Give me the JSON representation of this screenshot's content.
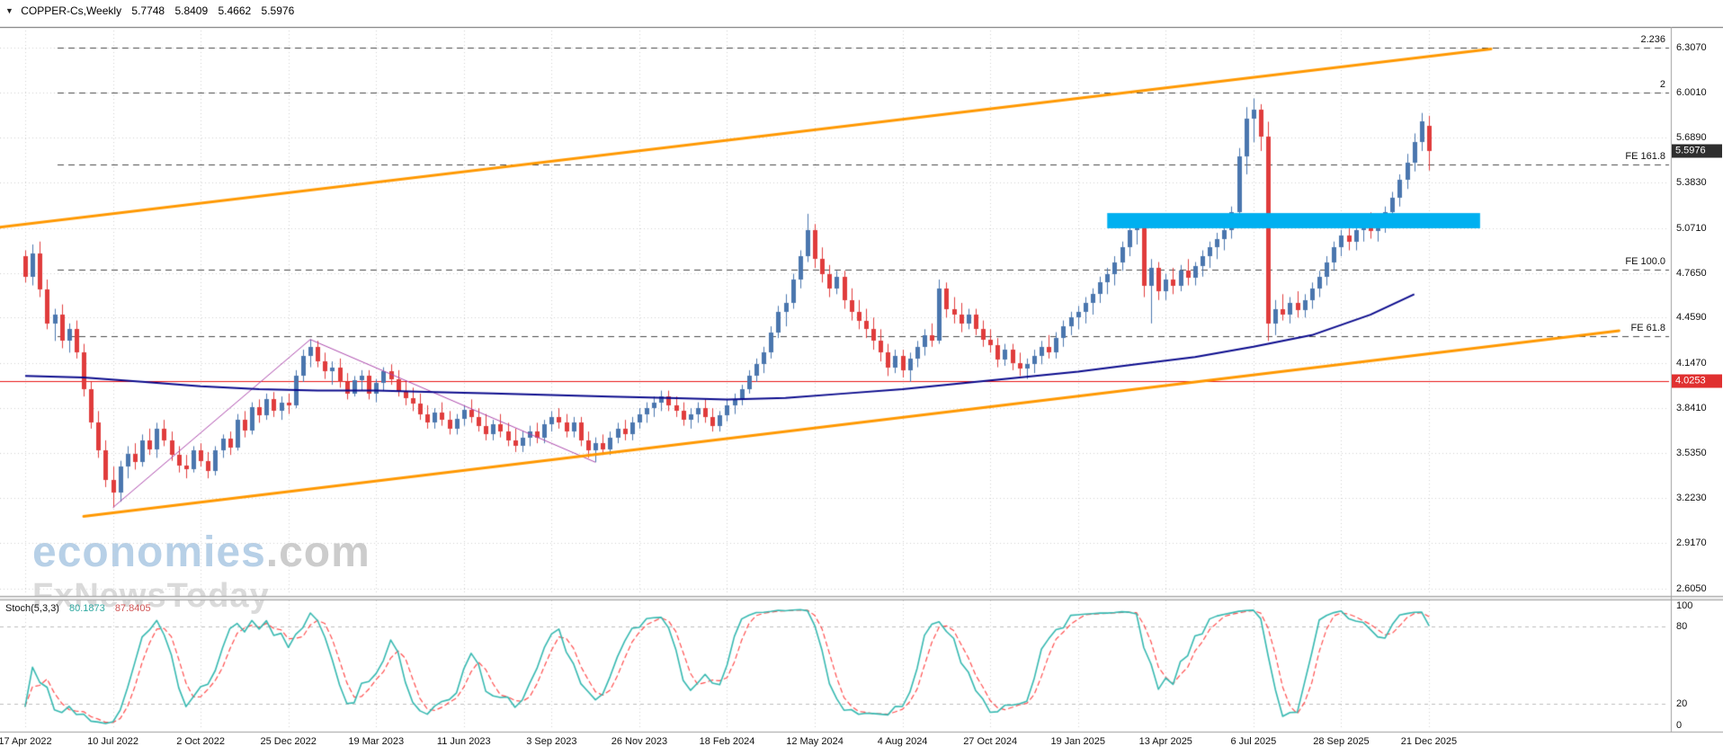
{
  "header": {
    "menu_icon": "▼",
    "symbol_title": "COPPER-Cs,Weekly",
    "open": "5.7748",
    "high": "5.8409",
    "low": "5.4662",
    "close": "5.5976"
  },
  "watermark": {
    "brand": "economies",
    "domain": ".com",
    "subtitle": "FxNewsToday"
  },
  "chart_data": {
    "type": "candlestick",
    "symbol": "COPPER-Cs",
    "timeframe": "Weekly",
    "x_axis": {
      "labels": [
        "17 Apr 2022",
        "10 Jul 2022",
        "2 Oct 2022",
        "25 Dec 2022",
        "19 Mar 2023",
        "11 Jun 2023",
        "3 Sep 2023",
        "26 Nov 2023",
        "18 Feb 2024",
        "12 May 2024",
        "4 Aug 2024",
        "27 Oct 2024",
        "19 Jan 2025",
        "13 Apr 2025",
        "6 Jul 2025",
        "28 Sep 2025",
        "21 Dec 2025"
      ],
      "label_week_step": 12
    },
    "y_axis": {
      "tick_labels": [
        "6.3070",
        "6.0010",
        "5.6890",
        "5.3830",
        "5.0710",
        "4.7650",
        "4.4590",
        "4.1470",
        "3.8410",
        "3.5350",
        "3.2230",
        "2.9170",
        "2.6050"
      ]
    },
    "current_price": {
      "value": "5.5976",
      "badge_color": "#2e2e2e",
      "text_color": "#ffffff"
    },
    "price_line": {
      "value": "4.0253",
      "color": "#e81515",
      "badge_color": "#e03030"
    },
    "candle_colors": {
      "up": "#4a76ae",
      "down": "#e03c3c"
    },
    "grid": {
      "color": "#d0d0d0"
    },
    "candles": [
      [
        4.88,
        4.92,
        4.7,
        4.74
      ],
      [
        4.74,
        4.96,
        4.68,
        4.9
      ],
      [
        4.9,
        4.98,
        4.6,
        4.65
      ],
      [
        4.65,
        4.72,
        4.38,
        4.42
      ],
      [
        4.42,
        4.52,
        4.3,
        4.48
      ],
      [
        4.48,
        4.55,
        4.25,
        4.3
      ],
      [
        4.3,
        4.42,
        4.22,
        4.38
      ],
      [
        4.38,
        4.44,
        4.18,
        4.22
      ],
      [
        4.22,
        4.28,
        3.92,
        3.97
      ],
      [
        3.97,
        4.02,
        3.7,
        3.74
      ],
      [
        3.74,
        3.82,
        3.5,
        3.55
      ],
      [
        3.55,
        3.62,
        3.3,
        3.35
      ],
      [
        3.35,
        3.44,
        3.16,
        3.26
      ],
      [
        3.26,
        3.48,
        3.2,
        3.44
      ],
      [
        3.44,
        3.58,
        3.36,
        3.53
      ],
      [
        3.53,
        3.6,
        3.42,
        3.47
      ],
      [
        3.47,
        3.66,
        3.44,
        3.62
      ],
      [
        3.62,
        3.7,
        3.52,
        3.56
      ],
      [
        3.56,
        3.74,
        3.5,
        3.7
      ],
      [
        3.7,
        3.76,
        3.58,
        3.62
      ],
      [
        3.62,
        3.68,
        3.48,
        3.52
      ],
      [
        3.52,
        3.58,
        3.4,
        3.45
      ],
      [
        3.45,
        3.52,
        3.36,
        3.42
      ],
      [
        3.42,
        3.58,
        3.4,
        3.55
      ],
      [
        3.55,
        3.6,
        3.44,
        3.48
      ],
      [
        3.48,
        3.54,
        3.36,
        3.41
      ],
      [
        3.41,
        3.58,
        3.38,
        3.55
      ],
      [
        3.55,
        3.66,
        3.5,
        3.63
      ],
      [
        3.63,
        3.68,
        3.52,
        3.57
      ],
      [
        3.57,
        3.8,
        3.55,
        3.76
      ],
      [
        3.76,
        3.82,
        3.64,
        3.69
      ],
      [
        3.69,
        3.88,
        3.66,
        3.85
      ],
      [
        3.85,
        3.9,
        3.74,
        3.79
      ],
      [
        3.79,
        3.94,
        3.76,
        3.9
      ],
      [
        3.9,
        3.95,
        3.78,
        3.82
      ],
      [
        3.82,
        3.92,
        3.76,
        3.88
      ],
      [
        3.88,
        3.94,
        3.8,
        3.86
      ],
      [
        3.86,
        4.1,
        3.84,
        4.06
      ],
      [
        4.06,
        4.24,
        4.02,
        4.2
      ],
      [
        4.2,
        4.31,
        4.12,
        4.26
      ],
      [
        4.26,
        4.3,
        4.12,
        4.16
      ],
      [
        4.16,
        4.22,
        4.04,
        4.09
      ],
      [
        4.09,
        4.16,
        4.0,
        4.12
      ],
      [
        4.12,
        4.18,
        3.98,
        4.02
      ],
      [
        4.02,
        4.08,
        3.9,
        3.94
      ],
      [
        3.94,
        4.06,
        3.92,
        4.03
      ],
      [
        4.03,
        4.1,
        3.96,
        4.06
      ],
      [
        4.06,
        4.1,
        3.9,
        3.94
      ],
      [
        3.94,
        4.04,
        3.88,
        4.01
      ],
      [
        4.01,
        4.12,
        3.96,
        4.09
      ],
      [
        4.09,
        4.14,
        4.0,
        4.04
      ],
      [
        4.04,
        4.1,
        3.92,
        3.96
      ],
      [
        3.96,
        4.02,
        3.86,
        3.91
      ],
      [
        3.91,
        3.98,
        3.82,
        3.87
      ],
      [
        3.87,
        3.94,
        3.76,
        3.8
      ],
      [
        3.8,
        3.86,
        3.7,
        3.74
      ],
      [
        3.74,
        3.84,
        3.7,
        3.81
      ],
      [
        3.81,
        3.88,
        3.72,
        3.76
      ],
      [
        3.76,
        3.82,
        3.66,
        3.7
      ],
      [
        3.7,
        3.8,
        3.66,
        3.77
      ],
      [
        3.77,
        3.86,
        3.72,
        3.83
      ],
      [
        3.83,
        3.9,
        3.74,
        3.78
      ],
      [
        3.78,
        3.84,
        3.68,
        3.72
      ],
      [
        3.72,
        3.8,
        3.62,
        3.66
      ],
      [
        3.66,
        3.76,
        3.62,
        3.73
      ],
      [
        3.73,
        3.8,
        3.64,
        3.68
      ],
      [
        3.68,
        3.74,
        3.58,
        3.62
      ],
      [
        3.62,
        3.7,
        3.54,
        3.58
      ],
      [
        3.58,
        3.68,
        3.54,
        3.64
      ],
      [
        3.64,
        3.72,
        3.58,
        3.68
      ],
      [
        3.68,
        3.74,
        3.6,
        3.64
      ],
      [
        3.64,
        3.76,
        3.6,
        3.73
      ],
      [
        3.73,
        3.82,
        3.68,
        3.78
      ],
      [
        3.78,
        3.84,
        3.7,
        3.74
      ],
      [
        3.74,
        3.8,
        3.64,
        3.68
      ],
      [
        3.68,
        3.78,
        3.64,
        3.74
      ],
      [
        3.74,
        3.78,
        3.58,
        3.62
      ],
      [
        3.62,
        3.68,
        3.5,
        3.55
      ],
      [
        3.55,
        3.64,
        3.47,
        3.6
      ],
      [
        3.6,
        3.66,
        3.52,
        3.56
      ],
      [
        3.56,
        3.68,
        3.52,
        3.64
      ],
      [
        3.64,
        3.74,
        3.6,
        3.7
      ],
      [
        3.7,
        3.76,
        3.62,
        3.66
      ],
      [
        3.66,
        3.78,
        3.62,
        3.74
      ],
      [
        3.74,
        3.84,
        3.7,
        3.8
      ],
      [
        3.8,
        3.88,
        3.74,
        3.84
      ],
      [
        3.84,
        3.92,
        3.78,
        3.88
      ],
      [
        3.88,
        3.96,
        3.82,
        3.92
      ],
      [
        3.92,
        3.96,
        3.82,
        3.86
      ],
      [
        3.86,
        3.92,
        3.78,
        3.82
      ],
      [
        3.82,
        3.88,
        3.72,
        3.76
      ],
      [
        3.76,
        3.84,
        3.7,
        3.8
      ],
      [
        3.8,
        3.88,
        3.74,
        3.84
      ],
      [
        3.84,
        3.9,
        3.74,
        3.78
      ],
      [
        3.78,
        3.84,
        3.68,
        3.72
      ],
      [
        3.72,
        3.82,
        3.68,
        3.79
      ],
      [
        3.79,
        3.9,
        3.75,
        3.86
      ],
      [
        3.86,
        3.94,
        3.8,
        3.9
      ],
      [
        3.9,
        4.0,
        3.86,
        3.97
      ],
      [
        3.97,
        4.1,
        3.94,
        4.06
      ],
      [
        4.06,
        4.18,
        4.02,
        4.14
      ],
      [
        4.14,
        4.26,
        4.08,
        4.22
      ],
      [
        4.22,
        4.4,
        4.18,
        4.36
      ],
      [
        4.36,
        4.54,
        4.32,
        4.5
      ],
      [
        4.5,
        4.62,
        4.4,
        4.56
      ],
      [
        4.56,
        4.76,
        4.52,
        4.72
      ],
      [
        4.72,
        4.92,
        4.66,
        4.88
      ],
      [
        4.88,
        5.17,
        4.84,
        5.06
      ],
      [
        5.06,
        5.1,
        4.8,
        4.86
      ],
      [
        4.86,
        4.94,
        4.7,
        4.76
      ],
      [
        4.76,
        4.82,
        4.6,
        4.66
      ],
      [
        4.66,
        4.78,
        4.62,
        4.74
      ],
      [
        4.74,
        4.78,
        4.52,
        4.58
      ],
      [
        4.58,
        4.66,
        4.44,
        4.5
      ],
      [
        4.5,
        4.58,
        4.38,
        4.44
      ],
      [
        4.44,
        4.52,
        4.32,
        4.38
      ],
      [
        4.38,
        4.46,
        4.24,
        4.3
      ],
      [
        4.3,
        4.38,
        4.16,
        4.22
      ],
      [
        4.22,
        4.28,
        4.06,
        4.12
      ],
      [
        4.12,
        4.24,
        4.08,
        4.2
      ],
      [
        4.2,
        4.24,
        4.05,
        4.1
      ],
      [
        4.1,
        4.22,
        4.02,
        4.18
      ],
      [
        4.18,
        4.3,
        4.12,
        4.26
      ],
      [
        4.26,
        4.38,
        4.2,
        4.34
      ],
      [
        4.34,
        4.42,
        4.26,
        4.3
      ],
      [
        4.3,
        4.72,
        4.28,
        4.66
      ],
      [
        4.66,
        4.7,
        4.46,
        4.52
      ],
      [
        4.52,
        4.6,
        4.42,
        4.48
      ],
      [
        4.48,
        4.56,
        4.36,
        4.42
      ],
      [
        4.42,
        4.52,
        4.38,
        4.48
      ],
      [
        4.48,
        4.52,
        4.34,
        4.38
      ],
      [
        4.38,
        4.44,
        4.26,
        4.31
      ],
      [
        4.31,
        4.38,
        4.22,
        4.27
      ],
      [
        4.27,
        4.32,
        4.12,
        4.17
      ],
      [
        4.17,
        4.28,
        4.13,
        4.24
      ],
      [
        4.24,
        4.28,
        4.1,
        4.15
      ],
      [
        4.15,
        4.22,
        4.06,
        4.11
      ],
      [
        4.11,
        4.18,
        4.04,
        4.14
      ],
      [
        4.14,
        4.24,
        4.08,
        4.2
      ],
      [
        4.2,
        4.3,
        4.14,
        4.26
      ],
      [
        4.26,
        4.34,
        4.18,
        4.22
      ],
      [
        4.22,
        4.36,
        4.18,
        4.32
      ],
      [
        4.32,
        4.44,
        4.26,
        4.4
      ],
      [
        4.4,
        4.5,
        4.34,
        4.46
      ],
      [
        4.46,
        4.54,
        4.38,
        4.5
      ],
      [
        4.5,
        4.6,
        4.42,
        4.56
      ],
      [
        4.56,
        4.66,
        4.48,
        4.62
      ],
      [
        4.62,
        4.74,
        4.56,
        4.7
      ],
      [
        4.7,
        4.8,
        4.62,
        4.76
      ],
      [
        4.76,
        4.88,
        4.68,
        4.84
      ],
      [
        4.84,
        4.98,
        4.78,
        4.94
      ],
      [
        4.94,
        5.12,
        4.88,
        5.06
      ],
      [
        5.06,
        5.17,
        4.96,
        5.1
      ],
      [
        5.1,
        5.14,
        4.6,
        4.68
      ],
      [
        4.68,
        4.86,
        4.42,
        4.8
      ],
      [
        4.8,
        4.84,
        4.58,
        4.64
      ],
      [
        4.64,
        4.76,
        4.58,
        4.72
      ],
      [
        4.72,
        4.8,
        4.62,
        4.68
      ],
      [
        4.68,
        4.82,
        4.64,
        4.78
      ],
      [
        4.78,
        4.86,
        4.68,
        4.73
      ],
      [
        4.73,
        4.84,
        4.68,
        4.81
      ],
      [
        4.81,
        4.92,
        4.74,
        4.88
      ],
      [
        4.88,
        4.98,
        4.8,
        4.94
      ],
      [
        4.94,
        5.04,
        4.86,
        5.0
      ],
      [
        5.0,
        5.1,
        4.92,
        5.06
      ],
      [
        5.06,
        5.22,
        5.0,
        5.18
      ],
      [
        5.18,
        5.62,
        5.12,
        5.56
      ],
      [
        5.56,
        5.9,
        5.44,
        5.82
      ],
      [
        5.82,
        5.96,
        5.66,
        5.88
      ],
      [
        5.88,
        5.92,
        5.6,
        5.7
      ],
      [
        5.7,
        5.8,
        4.3,
        4.42
      ],
      [
        4.42,
        4.58,
        4.34,
        4.52
      ],
      [
        4.52,
        4.62,
        4.44,
        4.48
      ],
      [
        4.48,
        4.6,
        4.42,
        4.56
      ],
      [
        4.56,
        4.64,
        4.46,
        4.51
      ],
      [
        4.51,
        4.62,
        4.46,
        4.58
      ],
      [
        4.58,
        4.7,
        4.52,
        4.66
      ],
      [
        4.66,
        4.78,
        4.6,
        4.74
      ],
      [
        4.74,
        4.88,
        4.68,
        4.84
      ],
      [
        4.84,
        4.98,
        4.78,
        4.94
      ],
      [
        4.94,
        5.06,
        4.88,
        5.02
      ],
      [
        5.02,
        5.12,
        4.92,
        4.98
      ],
      [
        4.98,
        5.1,
        4.92,
        5.06
      ],
      [
        5.06,
        5.16,
        4.98,
        5.12
      ],
      [
        5.12,
        5.18,
        5.0,
        5.05
      ],
      [
        5.05,
        5.16,
        4.98,
        5.1
      ],
      [
        5.1,
        5.22,
        5.04,
        5.18
      ],
      [
        5.18,
        5.32,
        5.12,
        5.28
      ],
      [
        5.28,
        5.44,
        5.22,
        5.4
      ],
      [
        5.4,
        5.58,
        5.34,
        5.52
      ],
      [
        5.52,
        5.72,
        5.46,
        5.66
      ],
      [
        5.66,
        5.86,
        5.6,
        5.8
      ],
      [
        5.7748,
        5.8409,
        5.4662,
        5.5976
      ]
    ],
    "overlays": {
      "moving_average": {
        "color": "#0a0a8c",
        "points": [
          [
            0,
            4.06
          ],
          [
            8,
            4.05
          ],
          [
            16,
            4.02
          ],
          [
            24,
            3.99
          ],
          [
            32,
            3.97
          ],
          [
            40,
            3.96
          ],
          [
            48,
            3.96
          ],
          [
            56,
            3.95
          ],
          [
            64,
            3.94
          ],
          [
            72,
            3.93
          ],
          [
            80,
            3.92
          ],
          [
            88,
            3.91
          ],
          [
            96,
            3.9
          ],
          [
            104,
            3.91
          ],
          [
            112,
            3.94
          ],
          [
            120,
            3.97
          ],
          [
            128,
            4.01
          ],
          [
            136,
            4.05
          ],
          [
            144,
            4.09
          ],
          [
            152,
            4.14
          ],
          [
            160,
            4.19
          ],
          [
            168,
            4.26
          ],
          [
            176,
            4.34
          ],
          [
            184,
            4.48
          ],
          [
            190,
            4.62
          ]
        ]
      },
      "zigzag": {
        "color": "#aa44aa",
        "points": [
          [
            12,
            3.16
          ],
          [
            39,
            4.31
          ],
          [
            78,
            3.47
          ]
        ]
      },
      "channel_lines": [
        {
          "color": "#ff9800",
          "from_week": -3.5,
          "from_price": 5.078,
          "to_week": 200.5,
          "to_price": 6.298
        },
        {
          "color": "#ff9800",
          "from_week": 8,
          "from_price": 3.1,
          "to_week": 218,
          "to_price": 4.37
        }
      ],
      "fib_levels": [
        {
          "label": "2.236",
          "price": 6.307
        },
        {
          "label": "2",
          "price": 6.001
        },
        {
          "label": "FE 161.8",
          "price": 5.51
        },
        {
          "label": "FE 100.0",
          "price": 4.785
        },
        {
          "label": "FE 61.8",
          "price": 4.33
        }
      ],
      "rectangle": {
        "color": "#00b0f0",
        "week_start": 148,
        "week_end": 199,
        "price_low": 5.071,
        "price_high": 5.175
      }
    },
    "indicator": {
      "name": "Stoch(5,3,3)",
      "value_k": "80.1873",
      "value_d": "87.8405",
      "params": {
        "k": 5,
        "slowing": 3,
        "d": 3
      },
      "range": [
        0,
        100
      ],
      "levels": [
        20,
        80
      ],
      "scale_labels": [
        "100",
        "80",
        "20",
        "0"
      ],
      "colors": {
        "main": "#35b8b0",
        "signal": "#ff4d4d"
      }
    }
  }
}
